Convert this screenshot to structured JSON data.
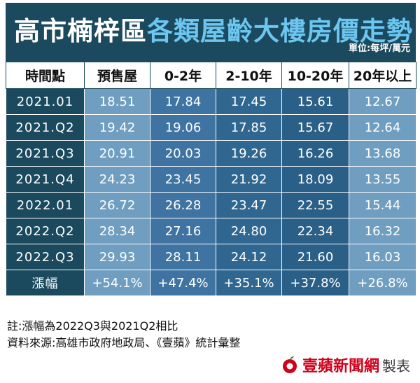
{
  "title_part1": "高市楠梓區",
  "title_part2": "各類屋齡大樓房價走勢",
  "unit": "單位:每坪/萬元",
  "chart_data": {
    "type": "table",
    "columns": [
      "時間點",
      "預售屋",
      "0-2年",
      "2-10年",
      "10-20年",
      "20年以上"
    ],
    "rows": [
      {
        "label": "2021.01",
        "values": [
          "18.51",
          "17.84",
          "17.45",
          "15.61",
          "12.67"
        ]
      },
      {
        "label": "2021.Q2",
        "values": [
          "19.42",
          "19.06",
          "17.85",
          "15.67",
          "12.64"
        ]
      },
      {
        "label": "2021.Q3",
        "values": [
          "20.91",
          "20.03",
          "19.26",
          "16.26",
          "13.68"
        ]
      },
      {
        "label": "2021.Q4",
        "values": [
          "24.23",
          "23.45",
          "21.92",
          "18.09",
          "13.55"
        ]
      },
      {
        "label": "2022.01",
        "values": [
          "26.72",
          "26.28",
          "23.47",
          "22.55",
          "15.44"
        ]
      },
      {
        "label": "2022.Q2",
        "values": [
          "28.34",
          "27.16",
          "24.80",
          "22.34",
          "16.32"
        ]
      },
      {
        "label": "2022.Q3",
        "values": [
          "29.93",
          "28.11",
          "24.12",
          "21.60",
          "16.03"
        ]
      },
      {
        "label": "漲幅",
        "values": [
          "+54.1%",
          "+47.4%",
          "+35.1%",
          "+37.8%",
          "+26.8%"
        ]
      }
    ]
  },
  "notes": [
    "註:漲幅為2022Q3與2021Q2相比",
    "資料來源:高雄市政府地政局、《壹蘋》統計彙整"
  ],
  "brand": {
    "name": "壹蘋新聞網",
    "suffix": "製表"
  },
  "colors": {
    "header": "#1b4a5e",
    "title_accent": "#6cc6f0",
    "brand": "#d0021b"
  }
}
